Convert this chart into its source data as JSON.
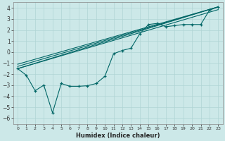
{
  "bg_color": "#cce8e8",
  "grid_color": "#b0d4d4",
  "line_color": "#006666",
  "xlabel": "Humidex (Indice chaleur)",
  "xlim": [
    -0.5,
    23.5
  ],
  "ylim": [
    -6.5,
    4.5
  ],
  "xticks": [
    0,
    1,
    2,
    3,
    4,
    5,
    6,
    7,
    8,
    9,
    10,
    11,
    12,
    13,
    14,
    15,
    16,
    17,
    18,
    19,
    20,
    21,
    22,
    23
  ],
  "yticks": [
    -6,
    -5,
    -4,
    -3,
    -2,
    -1,
    0,
    1,
    2,
    3,
    4
  ],
  "data_x": [
    0,
    1,
    2,
    3,
    4,
    5,
    6,
    7,
    8,
    9,
    10,
    11,
    12,
    13,
    14,
    15,
    16,
    17,
    18,
    19,
    20,
    21,
    22,
    23
  ],
  "data_y": [
    -1.5,
    -2.1,
    -3.5,
    -3.0,
    -5.5,
    -2.85,
    -3.1,
    -3.1,
    -3.05,
    -2.85,
    -2.2,
    -0.15,
    0.15,
    0.35,
    1.65,
    2.5,
    2.6,
    2.3,
    2.4,
    2.5,
    2.5,
    2.5,
    3.8,
    4.1
  ],
  "straight_lines": [
    {
      "x0": 0,
      "y0": -1.5,
      "x1": 23,
      "y1": 4.1
    },
    {
      "x0": 0,
      "y0": -1.3,
      "x1": 23,
      "y1": 4.1
    },
    {
      "x0": 0,
      "y0": -1.5,
      "x1": 23,
      "y1": 3.85
    },
    {
      "x0": 0,
      "y0": -1.1,
      "x1": 23,
      "y1": 4.1
    }
  ]
}
